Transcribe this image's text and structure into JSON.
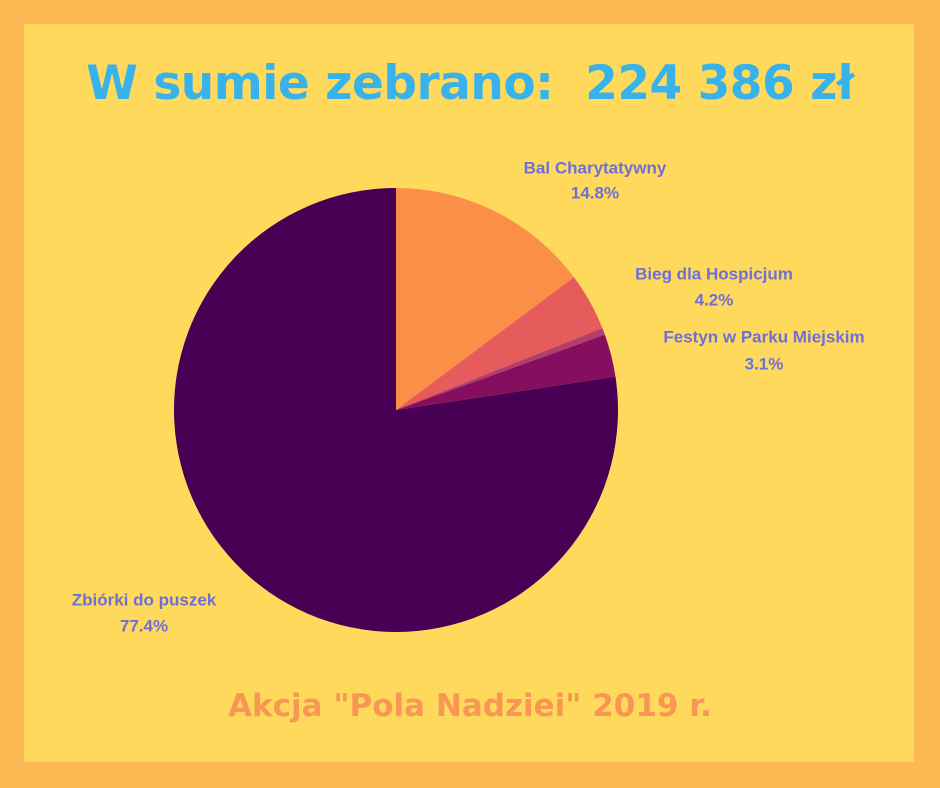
{
  "header": {
    "title": "W sumie zebrano:  224 386 zł"
  },
  "footer": {
    "text": "Akcja \"Pola Nadziei\" 2019 r."
  },
  "colors": {
    "outer_border": "#FDB954",
    "background": "#FED95C",
    "title": "#38B2EA",
    "footer": "#F99653",
    "labels": "#6F6FD8"
  },
  "chart_data": {
    "type": "pie",
    "title": "W sumie zebrano:  224 386 zł",
    "unit": "%",
    "slices": [
      {
        "name": "Bal Charytatywny",
        "value": 14.8,
        "label": "14.8%",
        "color": "#FB8F47"
      },
      {
        "name": "Bieg dla Hospicjum",
        "value": 4.2,
        "label": "4.2%",
        "color": "#E65B5B"
      },
      {
        "name": "",
        "value": 0.5,
        "label": "",
        "color": "#B23E6E"
      },
      {
        "name": "Festyn w Parku Miejskim",
        "value": 3.1,
        "label": "3.1%",
        "color": "#860E5F"
      },
      {
        "name": "Zbiórki do puszek",
        "value": 77.4,
        "label": "77.4%",
        "color": "#480055"
      }
    ],
    "start_angle": "12 o'clock",
    "direction": "clockwise",
    "legend": "none"
  }
}
